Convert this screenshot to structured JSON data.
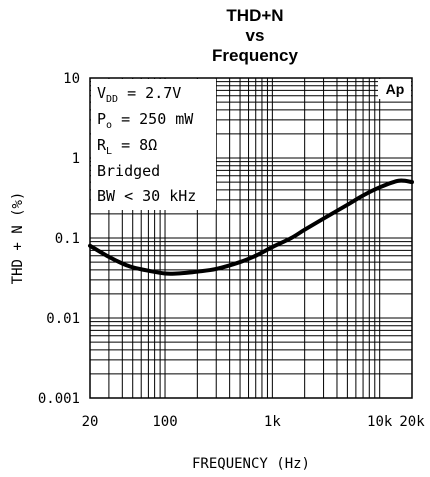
{
  "chart_data": {
    "type": "line",
    "title_lines": [
      "THD+N",
      "vs",
      "Frequency"
    ],
    "xlabel": "FREQUENCY (Hz)",
    "ylabel": "THD + N (%)",
    "xscale": "log",
    "yscale": "log",
    "xlim": [
      20,
      20000
    ],
    "ylim": [
      0.001,
      10
    ],
    "x_ticks": [
      {
        "value": 20,
        "label": "20"
      },
      {
        "value": 100,
        "label": "100"
      },
      {
        "value": 1000,
        "label": "1k"
      },
      {
        "value": 10000,
        "label": "10k"
      },
      {
        "value": 20000,
        "label": "20k"
      }
    ],
    "y_ticks": [
      {
        "value": 10,
        "label": "10"
      },
      {
        "value": 1,
        "label": "1"
      },
      {
        "value": 0.1,
        "label": "0.1"
      },
      {
        "value": 0.01,
        "label": "0.01"
      },
      {
        "value": 0.001,
        "label": "0.001"
      }
    ],
    "grid": true,
    "badge": "Ap",
    "conditions": {
      "vdd_sym": "V",
      "vdd_sub": "DD",
      "vdd_val": " = 2.7V",
      "po_sym": "P",
      "po_sub": "o",
      "po_val": " = 250 mW",
      "rl_sym": "R",
      "rl_sub": "L",
      "rl_val": " = 8Ω",
      "line4": "Bridged",
      "line5": "BW < 30 kHz"
    },
    "series": [
      {
        "x": [
          20,
          30,
          40,
          50,
          70,
          100,
          130,
          170,
          200,
          300,
          500,
          700,
          1000,
          1500,
          2000,
          3000,
          5000,
          7000,
          10000,
          15000,
          20000
        ],
        "y": [
          0.08,
          0.058,
          0.048,
          0.043,
          0.039,
          0.036,
          0.036,
          0.037,
          0.038,
          0.041,
          0.05,
          0.06,
          0.077,
          0.1,
          0.127,
          0.175,
          0.26,
          0.34,
          0.43,
          0.52,
          0.5
        ]
      }
    ]
  }
}
